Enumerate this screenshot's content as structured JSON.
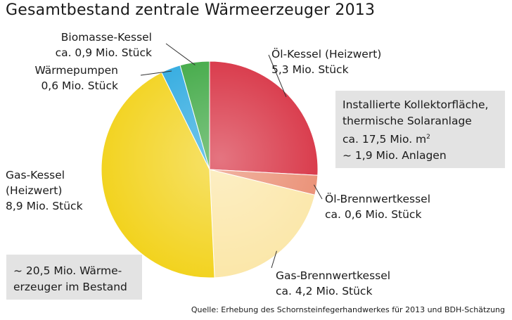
{
  "chart_data": {
    "type": "pie",
    "title": "Gesamtbestand zentrale Wärmeerzeuger 2013",
    "unit": "Mio. Stück",
    "slices": [
      {
        "name": "Öl-Kessel (Heizwert)",
        "value": 5.3,
        "color": "#d62a3c",
        "label_lines": [
          "Öl-Kessel (Heizwert)",
          "5,3 Mio. Stück"
        ]
      },
      {
        "name": "Öl-Brennwertkessel",
        "value": 0.6,
        "color": "#e98a6e",
        "label_lines": [
          "Öl-Brennwertkessel",
          "ca. 0,6 Mio. Stück"
        ]
      },
      {
        "name": "Gas-Brennwertkessel",
        "value": 4.2,
        "color": "#fbe6a6",
        "label_lines": [
          "Gas-Brennwertkessel",
          "ca. 4,2 Mio. Stück"
        ]
      },
      {
        "name": "Gas-Kessel (Heizwert)",
        "value": 8.9,
        "color": "#f2d21a",
        "label_lines": [
          "Gas-Kessel",
          "(Heizwert)",
          "8,9 Mio. Stück"
        ]
      },
      {
        "name": "Wärmepumpen",
        "value": 0.6,
        "color": "#2aa8df",
        "label_lines": [
          "Wärmepumpen",
          "0,6 Mio. Stück"
        ]
      },
      {
        "name": "Biomasse-Kessel",
        "value": 0.9,
        "color": "#3aa63f",
        "label_lines": [
          "Biomasse-Kessel",
          "ca. 0,9 Mio. Stück"
        ]
      }
    ],
    "info_box": {
      "lines": [
        "Installierte Kollektorfläche,",
        "thermische Solaranlage",
        "ca. 17,5 Mio. m",
        "~ 1,9 Mio. Anlagen"
      ],
      "superscript": "2"
    },
    "total_box": {
      "lines": [
        "~ 20,5 Mio. Wärme-",
        "erzeuger im Bestand"
      ]
    },
    "source": "Quelle: Erhebung des Schornsteinfegerhandwerkes für 2013 und BDH-Schätzung"
  }
}
